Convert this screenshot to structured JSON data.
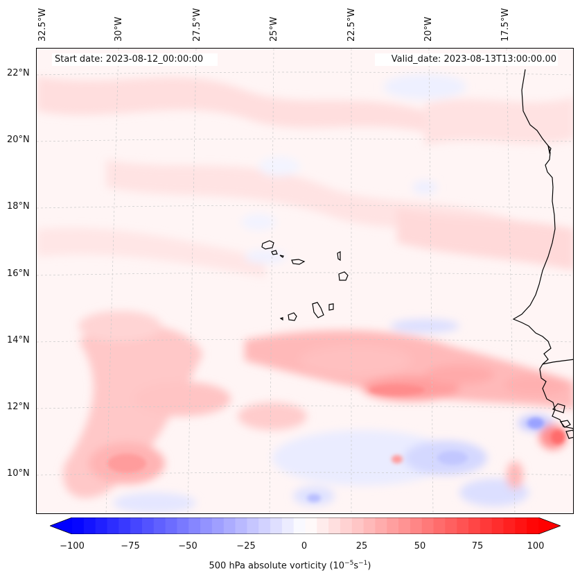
{
  "map": {
    "start_date": "Start date: 2023-08-12_00:00:00",
    "valid_date": "Valid_date: 2023-08-13T13:00:00.00",
    "longitude_labels": [
      "32.5°W",
      "30°W",
      "27.5°W",
      "25°W",
      "22.5°W",
      "20°W",
      "17.5°W"
    ],
    "latitude_labels": [
      "22°N",
      "20°N",
      "18°N",
      "16°N",
      "14°N",
      "12°N",
      "10°N"
    ]
  },
  "colorbar": {
    "ticks": [
      "−100",
      "−75",
      "−50",
      "−25",
      "0",
      "25",
      "50",
      "75",
      "100"
    ],
    "label": "500 hPa absolute vorticity (10",
    "label_exp1": "−5",
    "label_mid": "s",
    "label_exp2": "−1",
    "label_end": ")",
    "min": -100,
    "max": 100,
    "low_color": "#0000ff",
    "high_color": "#ff0000"
  }
}
